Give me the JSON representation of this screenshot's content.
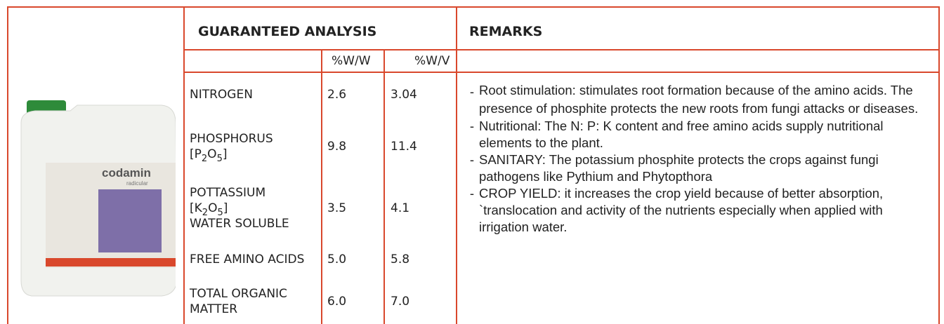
{
  "product": {
    "name": "codamin",
    "subname": "radicular"
  },
  "analysis": {
    "title": "GUARANTEED ANALYSIS",
    "units": [
      "%W/W",
      "%W/V"
    ],
    "rows": [
      {
        "lines": [
          [
            "NITROGEN"
          ]
        ],
        "values": [
          "2.6",
          "3.04"
        ]
      },
      {
        "lines": [
          [
            "PHOSPHORUS"
          ],
          [
            "[P",
            "2",
            "O",
            "5",
            "]"
          ]
        ],
        "values": [
          "9.8",
          "11.4"
        ]
      },
      {
        "lines": [
          [
            "POTTASSIUM"
          ],
          [
            "[K",
            "2",
            "O",
            "5",
            "]"
          ],
          [
            "WATER SOLUBLE"
          ]
        ],
        "values": [
          "3.5",
          "4.1"
        ]
      },
      {
        "lines": [
          [
            "FREE AMINO ACIDS"
          ]
        ],
        "values": [
          "5.0",
          "5.8"
        ]
      },
      {
        "lines": [
          [
            "TOTAL ORGANIC"
          ],
          [
            "MATTER"
          ]
        ],
        "values": [
          "6.0",
          "7.0"
        ]
      }
    ]
  },
  "remarks": {
    "title": "REMARKS",
    "marker": "-",
    "items": [
      "Root stimulation: stimulates root formation because of the amino acids. The presence of phosphite protects the new roots from fungi attacks or diseases.",
      "Nutritional: The N: P: K content and free amino acids supply nutritional elements to the plant.",
      "SANITARY: The potassium phosphite protects the crops against fungi pathogens like Pythium and Phytopthora",
      "CROP YIELD: it increases the crop yield because of better absorption, `translocation and activity of the nutrients especially when applied with irrigation water."
    ]
  }
}
